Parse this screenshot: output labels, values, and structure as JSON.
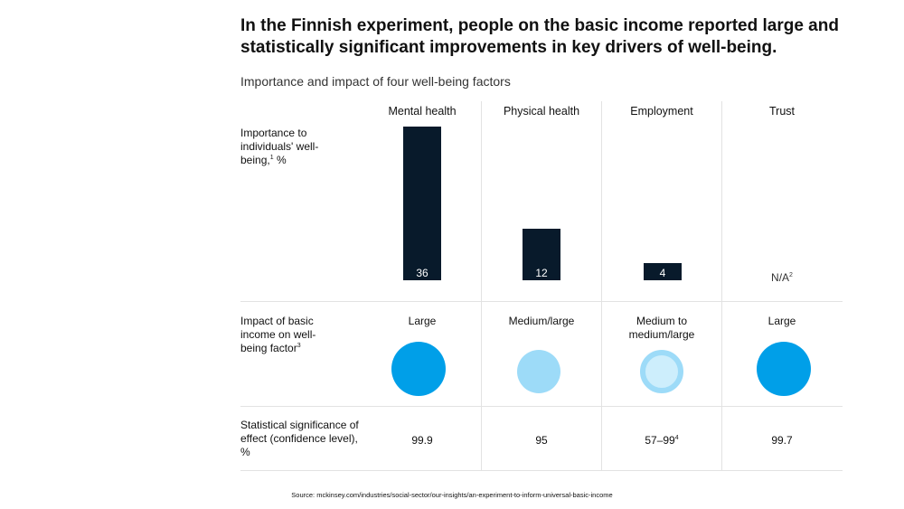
{
  "title": "In the Finnish experiment, people on the basic income reported large and statistically significant improvements in key drivers of well-being.",
  "subtitle": "Importance and impact of four well-being factors",
  "row_labels": {
    "importance": "Importance to individuals' well-being,",
    "importance_sup": "1",
    "importance_unit": " %",
    "impact": "Impact of basic income on well-being factor",
    "impact_sup": "3",
    "significance": "Statistical significance of effect (confidence level), %"
  },
  "chart_data": {
    "type": "bar",
    "title": "Importance and impact of four well-being factors",
    "categories": [
      "Mental health",
      "Physical health",
      "Employment",
      "Trust"
    ],
    "series": [
      {
        "name": "Importance to individuals' well-being, %",
        "values": [
          36,
          12,
          4,
          null
        ]
      }
    ],
    "value_labels": [
      "36",
      "12",
      "4",
      "N/A"
    ],
    "na_sup": "2",
    "impact": [
      "Large",
      "Medium/large",
      "Medium to medium/large",
      "Large"
    ],
    "impact_level": [
      "large",
      "medium-large",
      "medium-to-medium-large",
      "large"
    ],
    "significance": [
      "99.9",
      "95",
      "57–99",
      "99.7"
    ],
    "significance_sup": [
      "",
      "",
      "4",
      ""
    ],
    "ylim": [
      0,
      36
    ]
  },
  "colors": {
    "bar": "#081a2b",
    "large": "#009fe8",
    "medium_large": "#9ddbf8",
    "medium_ring": "#9ddbf8",
    "medium_inner": "#cdeefc"
  },
  "source": "Source: mckinsey.com/industries/social-sector/our-insights/an-experiment-to-inform-universal-basic-income"
}
